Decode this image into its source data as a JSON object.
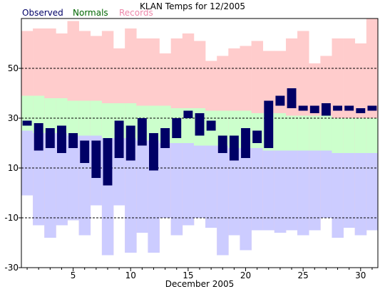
{
  "chart_data": {
    "type": "bar",
    "title": "KLAN Temps for 12/2005",
    "xlabel": "December 2005",
    "ylabel": "",
    "legend": [
      {
        "name": "Observed",
        "color": "#000066"
      },
      {
        "name": "Normals",
        "color": "#006600"
      },
      {
        "name": "Records",
        "color": "#ee88aa"
      }
    ],
    "legend_position": "top-left",
    "ylim": [
      -30,
      70
    ],
    "xlim": [
      0.5,
      31.5
    ],
    "y_ticks": [
      -30,
      -10,
      10,
      30,
      50
    ],
    "x_ticks": [
      5,
      10,
      15,
      20,
      25,
      30
    ],
    "grid": "horizontal dashed",
    "days": [
      1,
      2,
      3,
      4,
      5,
      6,
      7,
      8,
      9,
      10,
      11,
      12,
      13,
      14,
      15,
      16,
      17,
      18,
      19,
      20,
      21,
      22,
      23,
      24,
      25,
      26,
      27,
      28,
      29,
      30,
      31
    ],
    "series": [
      {
        "name": "Records",
        "color": "#ffcccc",
        "low": [
          -1,
          -13,
          -18,
          -13,
          -11,
          -17,
          -5,
          -25,
          -5,
          -24,
          -16,
          -24,
          -10,
          -17,
          -13,
          -10,
          -14,
          -25,
          -17,
          -23,
          -15,
          -15,
          -16,
          -15,
          -17,
          -15,
          -10,
          -18,
          -14,
          -17,
          -15
        ],
        "high": [
          65,
          66,
          66,
          64,
          69,
          65,
          63,
          65,
          58,
          66,
          62,
          62,
          56,
          62,
          64,
          61,
          53,
          55,
          58,
          59,
          61,
          57,
          57,
          62,
          65,
          52,
          55,
          62,
          62,
          60,
          70
        ]
      },
      {
        "name": "Normals",
        "color": "#ccffcc",
        "low": [
          25,
          24,
          24,
          24,
          23,
          23,
          23,
          22,
          22,
          22,
          21,
          21,
          20,
          20,
          20,
          19,
          19,
          19,
          18,
          18,
          18,
          17,
          17,
          17,
          17,
          17,
          17,
          16,
          16,
          16,
          16
        ],
        "high": [
          39,
          39,
          38,
          38,
          37,
          37,
          37,
          36,
          36,
          36,
          35,
          35,
          35,
          34,
          34,
          34,
          33,
          33,
          33,
          33,
          32,
          32,
          32,
          31,
          31,
          31,
          31,
          30,
          30,
          30,
          30
        ]
      },
      {
        "name": "Observed",
        "color": "#000066",
        "low": [
          27,
          17,
          18,
          16,
          18,
          12,
          6,
          3,
          14,
          13,
          19,
          9,
          18,
          22,
          30,
          23,
          25,
          16,
          13,
          14,
          20,
          18,
          35,
          34,
          33,
          32,
          31,
          33,
          33,
          32,
          33
        ],
        "high": [
          29,
          28,
          26,
          27,
          24,
          21,
          21,
          22,
          29,
          27,
          30,
          24,
          26,
          30,
          33,
          32,
          29,
          23,
          23,
          26,
          25,
          37,
          39,
          42,
          35,
          35,
          36,
          35,
          35,
          34,
          35
        ]
      }
    ],
    "series_colors": {
      "records_fill": "#ffcccc",
      "normals_fill": "#ccffcc",
      "normals_low_fill": "#ccccff",
      "observed_fill": "#000066"
    }
  }
}
